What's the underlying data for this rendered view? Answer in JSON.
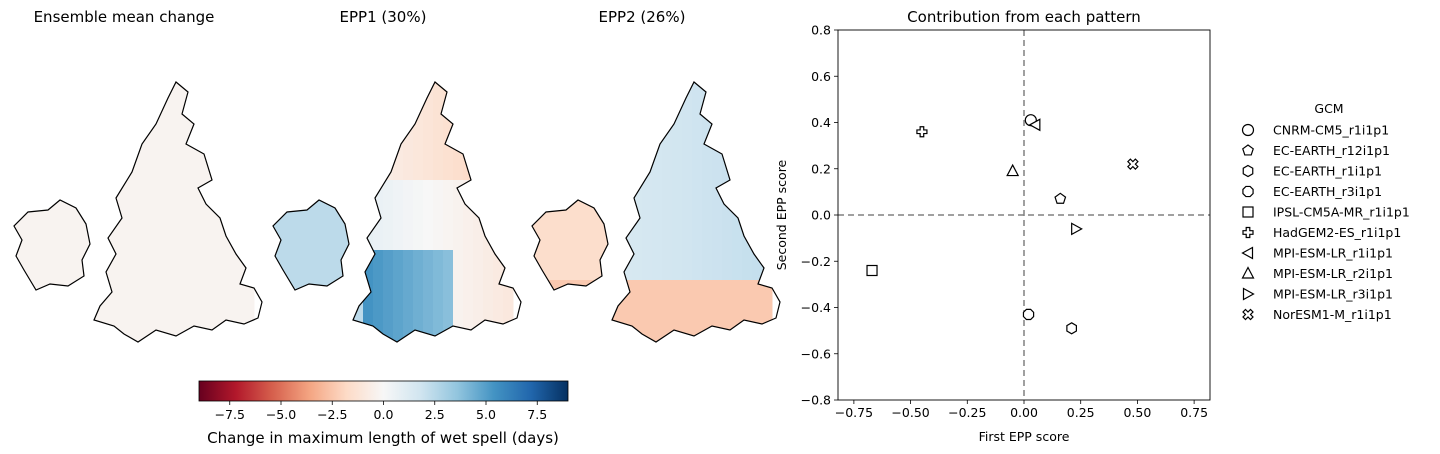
{
  "maps": {
    "panels": [
      {
        "title": "Ensemble mean change"
      },
      {
        "title": "EPP1 (30%)"
      },
      {
        "title": "EPP2 (26%)"
      }
    ],
    "colorbar": {
      "label": "Change in maximum length of wet spell (days)",
      "ticks": [
        "−7.5",
        "−5.0",
        "−2.5",
        "0.0",
        "2.5",
        "5.0",
        "7.5"
      ],
      "range": [
        -9,
        9
      ],
      "colormap": "RdBu",
      "colors": [
        "#67001f",
        "#b2182b",
        "#d6604d",
        "#f4a582",
        "#fddbc7",
        "#f7f7f7",
        "#d1e5f0",
        "#92c5de",
        "#4393c3",
        "#2166ac",
        "#053061"
      ]
    }
  },
  "chart_data": {
    "type": "scatter",
    "title": "Contribution from each pattern",
    "xlabel": "First EPP score",
    "ylabel": "Second EPP score",
    "xlim": [
      -0.82,
      0.82
    ],
    "ylim": [
      -0.8,
      0.8
    ],
    "xticks": [
      "−0.75",
      "−0.50",
      "−0.25",
      "0.00",
      "0.25",
      "0.50",
      "0.75"
    ],
    "yticks": [
      "−0.8",
      "−0.6",
      "−0.4",
      "−0.2",
      "0.0",
      "0.2",
      "0.4",
      "0.6",
      "0.8"
    ],
    "grid": false,
    "reference_lines": {
      "x": 0,
      "y": 0,
      "style": "dashed",
      "color": "#808080"
    },
    "legend": {
      "title": "GCM",
      "placement": "right",
      "entries": [
        {
          "name": "CNRM-CM5_r1i1p1",
          "marker": "circle"
        },
        {
          "name": "EC-EARTH_r12i1p1",
          "marker": "pentagon"
        },
        {
          "name": "EC-EARTH_r1i1p1",
          "marker": "hexagon"
        },
        {
          "name": "EC-EARTH_r3i1p1",
          "marker": "octagon"
        },
        {
          "name": "IPSL-CM5A-MR_r1i1p1",
          "marker": "square"
        },
        {
          "name": "HadGEM2-ES_r1i1p1",
          "marker": "plus"
        },
        {
          "name": "MPI-ESM-LR_r1i1p1",
          "marker": "triangle-left"
        },
        {
          "name": "MPI-ESM-LR_r2i1p1",
          "marker": "triangle-up"
        },
        {
          "name": "MPI-ESM-LR_r3i1p1",
          "marker": "triangle-right"
        },
        {
          "name": "NorESM1-M_r1i1p1",
          "marker": "x-filled"
        }
      ]
    },
    "points": [
      {
        "model": "CNRM-CM5_r1i1p1",
        "x": 0.03,
        "y": 0.41
      },
      {
        "model": "EC-EARTH_r12i1p1",
        "x": 0.16,
        "y": 0.07
      },
      {
        "model": "EC-EARTH_r1i1p1",
        "x": 0.21,
        "y": -0.49
      },
      {
        "model": "EC-EARTH_r3i1p1",
        "x": 0.02,
        "y": -0.43
      },
      {
        "model": "IPSL-CM5A-MR_r1i1p1",
        "x": -0.67,
        "y": -0.24
      },
      {
        "model": "HadGEM2-ES_r1i1p1",
        "x": -0.45,
        "y": 0.36
      },
      {
        "model": "MPI-ESM-LR_r1i1p1",
        "x": 0.05,
        "y": 0.39
      },
      {
        "model": "MPI-ESM-LR_r2i1p1",
        "x": -0.05,
        "y": 0.19
      },
      {
        "model": "MPI-ESM-LR_r3i1p1",
        "x": 0.23,
        "y": -0.06
      },
      {
        "model": "NorESM1-M_r1i1p1",
        "x": 0.48,
        "y": 0.22
      }
    ]
  }
}
